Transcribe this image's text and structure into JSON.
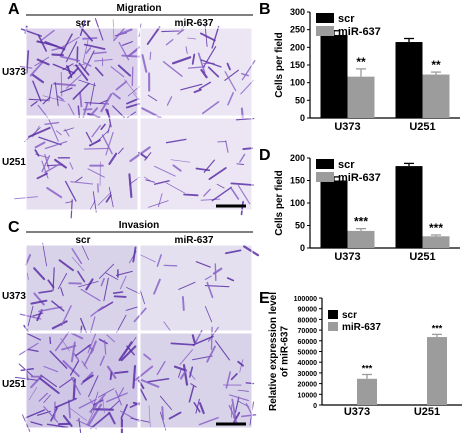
{
  "panels": {
    "A": {
      "letter": "A",
      "title": "Migration",
      "col_labels": [
        "scr",
        "miR-637"
      ],
      "row_labels": [
        "U373",
        "U251"
      ]
    },
    "C": {
      "letter": "C",
      "title": "Invasion",
      "col_labels": [
        "scr",
        "miR-637"
      ],
      "row_labels": [
        "U373",
        "U251"
      ]
    }
  },
  "colors": {
    "stain_dark": "#5b2fa6",
    "stain_mid": "#8a63c8",
    "stain_background_light": "#ece6f4",
    "stain_background_invasion": "#d9d3ea",
    "bar_scr": "#000000",
    "bar_mir": "#9c9c9c",
    "scale_bar": "#000000"
  },
  "chart_data": [
    {
      "panel": "B",
      "type": "bar",
      "ylabel": "Cells per field",
      "categories": [
        "U373",
        "U251"
      ],
      "ylim": [
        0,
        300
      ],
      "yticks": [
        0,
        50,
        100,
        150,
        200,
        250,
        300
      ],
      "series": [
        {
          "name": "scr",
          "values": [
            235,
            215
          ],
          "errors": [
            12,
            10
          ]
        },
        {
          "name": "miR-637",
          "values": [
            117,
            123
          ],
          "errors": [
            22,
            7
          ]
        }
      ],
      "significance": [
        {
          "category": "U373",
          "series": "miR-637",
          "label": "**"
        },
        {
          "category": "U251",
          "series": "miR-637",
          "label": "**"
        }
      ],
      "legend": "top-left"
    },
    {
      "panel": "D",
      "type": "bar",
      "ylabel": "Cells per field",
      "categories": [
        "U373",
        "U251"
      ],
      "ylim": [
        0,
        200
      ],
      "yticks": [
        0,
        50,
        100,
        150,
        200
      ],
      "series": [
        {
          "name": "scr",
          "values": [
            150,
            182
          ],
          "errors": [
            8,
            6
          ]
        },
        {
          "name": "miR-637",
          "values": [
            38,
            26
          ],
          "errors": [
            5,
            3
          ]
        }
      ],
      "significance": [
        {
          "category": "U373",
          "series": "miR-637",
          "label": "***"
        },
        {
          "category": "U251",
          "series": "miR-637",
          "label": "***"
        }
      ],
      "legend": "top-left"
    },
    {
      "panel": "E",
      "type": "bar",
      "ylabel": "Relative expression level of miR-637",
      "categories": [
        "U373",
        "U251"
      ],
      "ylim": [
        0,
        100000
      ],
      "yticks": [
        0,
        10000,
        20000,
        30000,
        40000,
        50000,
        60000,
        70000,
        80000,
        90000,
        100000
      ],
      "series": [
        {
          "name": "scr",
          "values": [
            1,
            1
          ],
          "errors": [
            0,
            0
          ]
        },
        {
          "name": "miR-637",
          "values": [
            24500,
            63500
          ],
          "errors": [
            4000,
            2500
          ]
        }
      ],
      "significance": [
        {
          "category": "U373",
          "series": "miR-637",
          "label": "***"
        },
        {
          "category": "U251",
          "series": "miR-637",
          "label": "***"
        }
      ],
      "legend": "top-left"
    }
  ]
}
